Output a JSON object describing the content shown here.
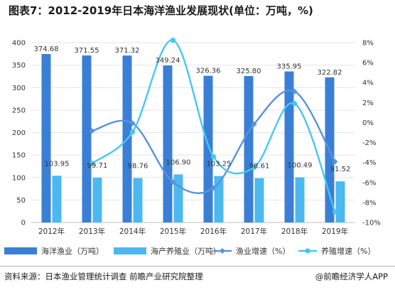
{
  "title": "图表7：2012-2019年日本海洋渔业发展现状(单位：万吨，%)",
  "source": "资料来源：日本渔业管理统计调查 前瞻产业研究院整理",
  "brand": "@前瞻经济学人APP",
  "colors": {
    "fishery_bar": "#3a7fd5",
    "aquaculture_bar": "#4cb8f0",
    "fishery_line": "#5b92da",
    "aquaculture_line": "#45c7f5",
    "axis": "#555555",
    "grid": "#e4e4e4"
  },
  "chart_data": {
    "type": "bar",
    "categories": [
      "2012年",
      "2013年",
      "2014年",
      "2015年",
      "2016年",
      "2017年",
      "2018年",
      "2019年"
    ],
    "left_axis": {
      "ticks": [
        "0",
        "50",
        "100",
        "150",
        "200",
        "250",
        "300",
        "350",
        "400"
      ],
      "ylim": [
        0,
        400
      ]
    },
    "right_axis": {
      "ticks": [
        "-10%",
        "-8%",
        "-6%",
        "-4%",
        "-2%",
        "0%",
        "2%",
        "4%",
        "6%",
        "8%"
      ],
      "ylim": [
        -10,
        8
      ]
    },
    "series": [
      {
        "name": "海洋渔业（万吨）",
        "type": "bar",
        "axis": "left",
        "values": [
          374.68,
          371.55,
          371.32,
          349.24,
          326.36,
          325.8,
          335.95,
          322.82
        ],
        "labels": [
          "374.68",
          "371.55",
          "371.32",
          "349.24",
          "326.36",
          "325.80",
          "335.95",
          "322.82"
        ]
      },
      {
        "name": "海产养殖业（万吨）",
        "type": "bar",
        "axis": "left",
        "values": [
          103.95,
          99.71,
          98.76,
          106.9,
          103.25,
          98.61,
          100.49,
          91.52
        ],
        "labels": [
          "103.95",
          "99.71",
          "98.76",
          "106.90",
          "103.25",
          "98.61",
          "100.49",
          "91.52"
        ]
      },
      {
        "name": "渔业增速（%）",
        "type": "line",
        "axis": "right",
        "values": [
          null,
          -0.84,
          -0.06,
          -5.95,
          -6.55,
          -0.17,
          3.12,
          -3.91
        ]
      },
      {
        "name": "养殖增速（%）",
        "type": "line",
        "axis": "right",
        "values": [
          null,
          -4.08,
          -0.95,
          8.24,
          -3.41,
          -4.49,
          1.91,
          -8.93
        ]
      }
    ],
    "legend_position": "bottom",
    "grid": true
  }
}
